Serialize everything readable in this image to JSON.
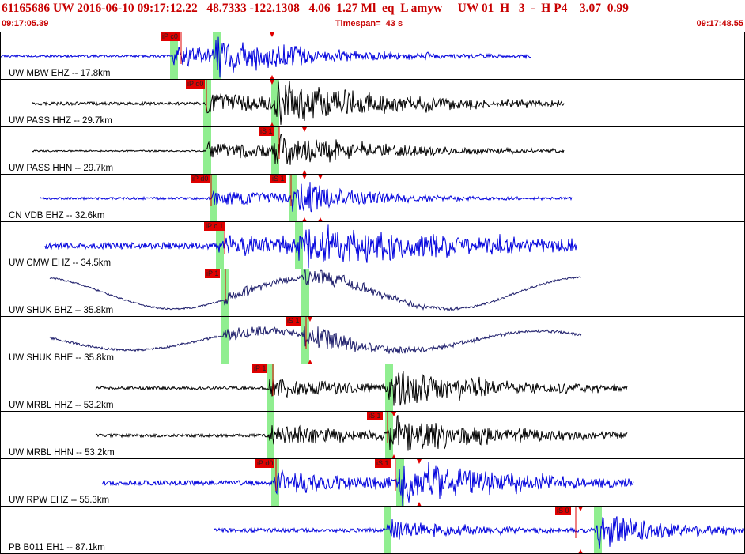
{
  "header": {
    "title": "61165686 UW 2016-06-10 09:17:12.22   48.7333 -122.1308   4.06  1.27 Ml  eq  L amyw     UW 01  H   3  -  H P4    3.07  0.99",
    "start_time": "09:17:05.39",
    "timespan": "Timespan=  43 s",
    "end_time": "09:17:48.55"
  },
  "colors": {
    "header_text": "#c80000",
    "blue_trace": "#0000dd",
    "black_trace": "#000000",
    "navy_trace": "#1c1c6a",
    "pick_marker": "#e00000",
    "phase_window": "#90ee90"
  },
  "panels": [
    {
      "label": "UW MBW EHZ -- 17.8km",
      "color": "blue",
      "picks": [
        {
          "text": "iP c0",
          "x": 202
        }
      ],
      "windows": [
        214,
        268
      ],
      "markers": [
        343
      ]
    },
    {
      "label": "UW PASS HHZ -- 29.7km",
      "color": "black",
      "picks": [
        {
          "text": "iP d0",
          "x": 234
        }
      ],
      "windows": [
        256,
        342
      ],
      "markers": [
        343
      ]
    },
    {
      "label": "UW PASS HHN -- 29.7km",
      "color": "black",
      "picks": [
        {
          "text": "iS 1",
          "x": 326
        }
      ],
      "windows": [
        256,
        342
      ],
      "markers": [
        384
      ]
    },
    {
      "label": "CN VDB EHZ -- 32.6km",
      "color": "blue",
      "picks": [
        {
          "text": "iP d0",
          "x": 240
        },
        {
          "text": "iS 1",
          "x": 341
        }
      ],
      "windows": [
        264,
        365
      ],
      "markers": [
        384,
        404
      ]
    },
    {
      "label": "UW CMW EHZ -- 34.5km",
      "color": "blue",
      "picks": [
        {
          "text": "iP c 1",
          "x": 257
        }
      ],
      "windows": [
        272,
        372
      ],
      "markers": []
    },
    {
      "label": "UW SHUK BHZ -- 35.8km",
      "color": "navy",
      "picks": [
        {
          "text": "iP 1",
          "x": 258
        }
      ],
      "windows": [
        278,
        380
      ],
      "markers": []
    },
    {
      "label": "UW SHUK BHE -- 35.8km",
      "color": "navy",
      "picks": [
        {
          "text": "iS 1",
          "x": 360
        }
      ],
      "windows": [
        278,
        380
      ],
      "markers": [
        391
      ]
    },
    {
      "label": "UW MRBL HHZ -- 53.2km",
      "color": "black",
      "picks": [
        {
          "text": "iP 1",
          "x": 318
        }
      ],
      "windows": [
        336,
        486
      ],
      "markers": []
    },
    {
      "label": "UW MRBL HHN -- 53.2km",
      "color": "black",
      "picks": [
        {
          "text": "iS 1",
          "x": 463
        }
      ],
      "windows": [
        336,
        486
      ],
      "markers": [
        497
      ]
    },
    {
      "label": "UW RPW EHZ -- 55.3km",
      "color": "blue",
      "picks": [
        {
          "text": "iP d0",
          "x": 322
        },
        {
          "text": "iS 1",
          "x": 473
        }
      ],
      "windows": [
        342,
        500
      ],
      "markers": [
        529
      ]
    },
    {
      "label": "PB B011 EH1 -- 87.1km",
      "color": "blue",
      "picks": [
        {
          "text": "iS 0",
          "x": 701
        }
      ],
      "windows": [
        484,
        750
      ],
      "markers": [
        733
      ]
    }
  ]
}
